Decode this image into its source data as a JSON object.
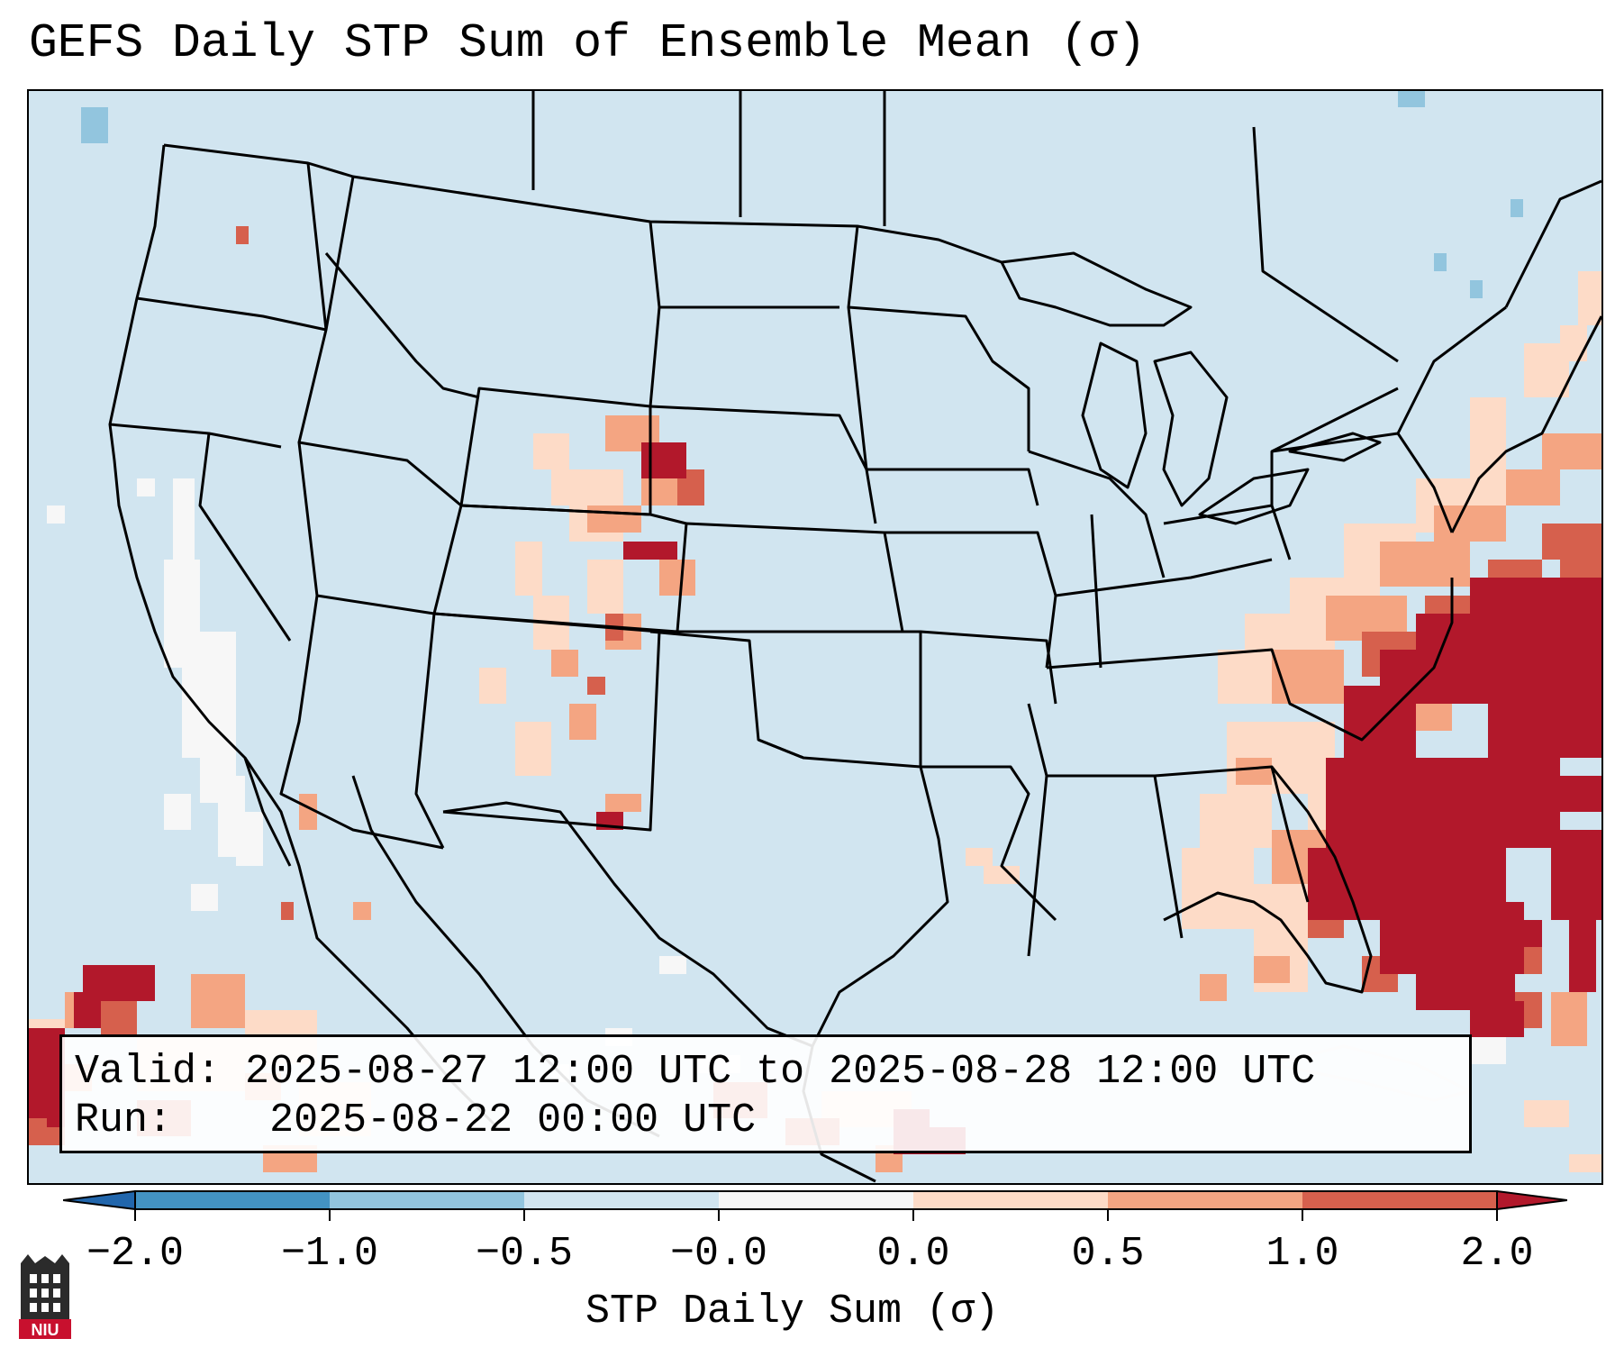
{
  "title": "GEFS Daily STP Sum of Ensemble Mean (σ)",
  "info": {
    "valid_label": "Valid:",
    "valid_value": "2025-08-27 12:00 UTC to 2025-08-28 12:00 UTC",
    "run_label": "Run:",
    "run_value": "2025-08-22 00:00 UTC"
  },
  "colorbar": {
    "label": "STP Daily Sum (σ)",
    "ticks": [
      "−2.0",
      "−1.0",
      "−0.5",
      "−0.0",
      "0.0",
      "0.5",
      "1.0",
      "2.0"
    ],
    "colors": [
      "#2166ac",
      "#4393c3",
      "#92c5de",
      "#d1e5f0",
      "#f7f7f7",
      "#fddbc7",
      "#f4a582",
      "#d6604d",
      "#b2182b"
    ]
  },
  "logo": {
    "text": "NIU",
    "color": "#c8102e"
  }
}
